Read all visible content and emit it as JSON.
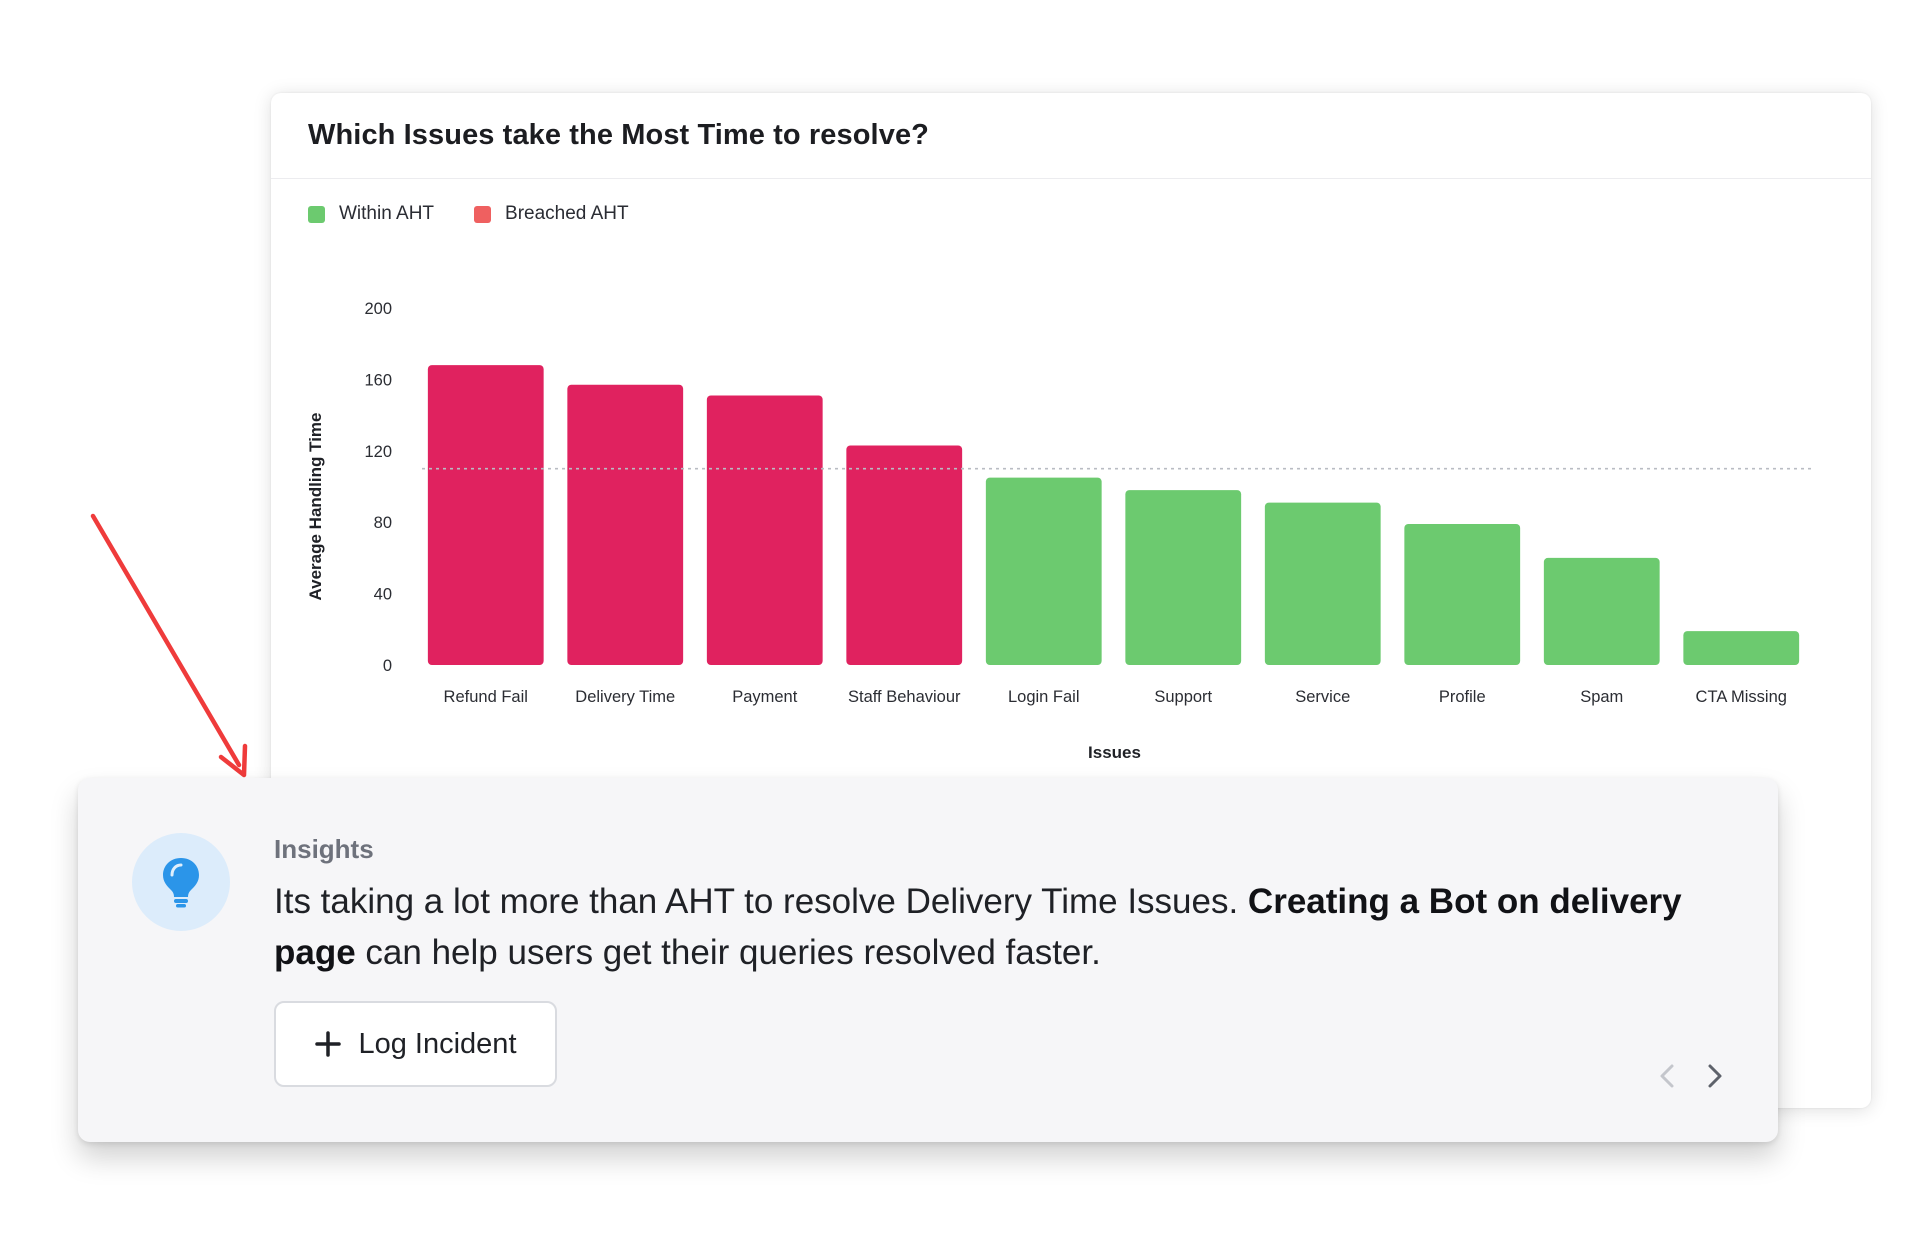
{
  "chart_card": {
    "title": "Which Issues take the Most Time to resolve?",
    "legend": [
      {
        "label": "Within AHT",
        "color": "#6cca6f"
      },
      {
        "label": "Breached AHT",
        "color": "#ef6060"
      }
    ]
  },
  "chart_data": {
    "type": "bar",
    "categories": [
      "Refund Fail",
      "Delivery Time",
      "Payment",
      "Staff Behaviour",
      "Login Fail",
      "Support",
      "Service",
      "Profile",
      "Spam",
      "CTA Missing"
    ],
    "values": [
      168,
      157,
      151,
      123,
      105,
      98,
      91,
      79,
      60,
      19
    ],
    "status": [
      "Breached AHT",
      "Breached AHT",
      "Breached AHT",
      "Breached AHT",
      "Within AHT",
      "Within AHT",
      "Within AHT",
      "Within AHT",
      "Within AHT",
      "Within AHT"
    ],
    "bar_colors": {
      "Breached AHT": "#e0225f",
      "Within AHT": "#6cca6f"
    },
    "reference_line": {
      "value": 110,
      "style": "dotted"
    },
    "xlabel": "Issues",
    "ylabel": "Average Handling Time",
    "ylim": [
      0,
      200
    ],
    "yticks": [
      0,
      40,
      80,
      120,
      160,
      200
    ],
    "grid": false,
    "legend_position": "top-left"
  },
  "insight": {
    "heading": "Insights",
    "text_before": "Its taking a lot more than AHT to resolve Delivery Time Issues. ",
    "text_bold": "Creating a Bot on delivery page",
    "text_after": " can help users get their queries resolved faster.",
    "button_label": "Log Incident",
    "icon": "lightbulb-icon",
    "icon_color": "#2b95e9"
  },
  "colors": {
    "annotation_arrow": "#ef3b3b",
    "nav_prev": "#c4c6cc",
    "nav_next": "#5e626b"
  }
}
